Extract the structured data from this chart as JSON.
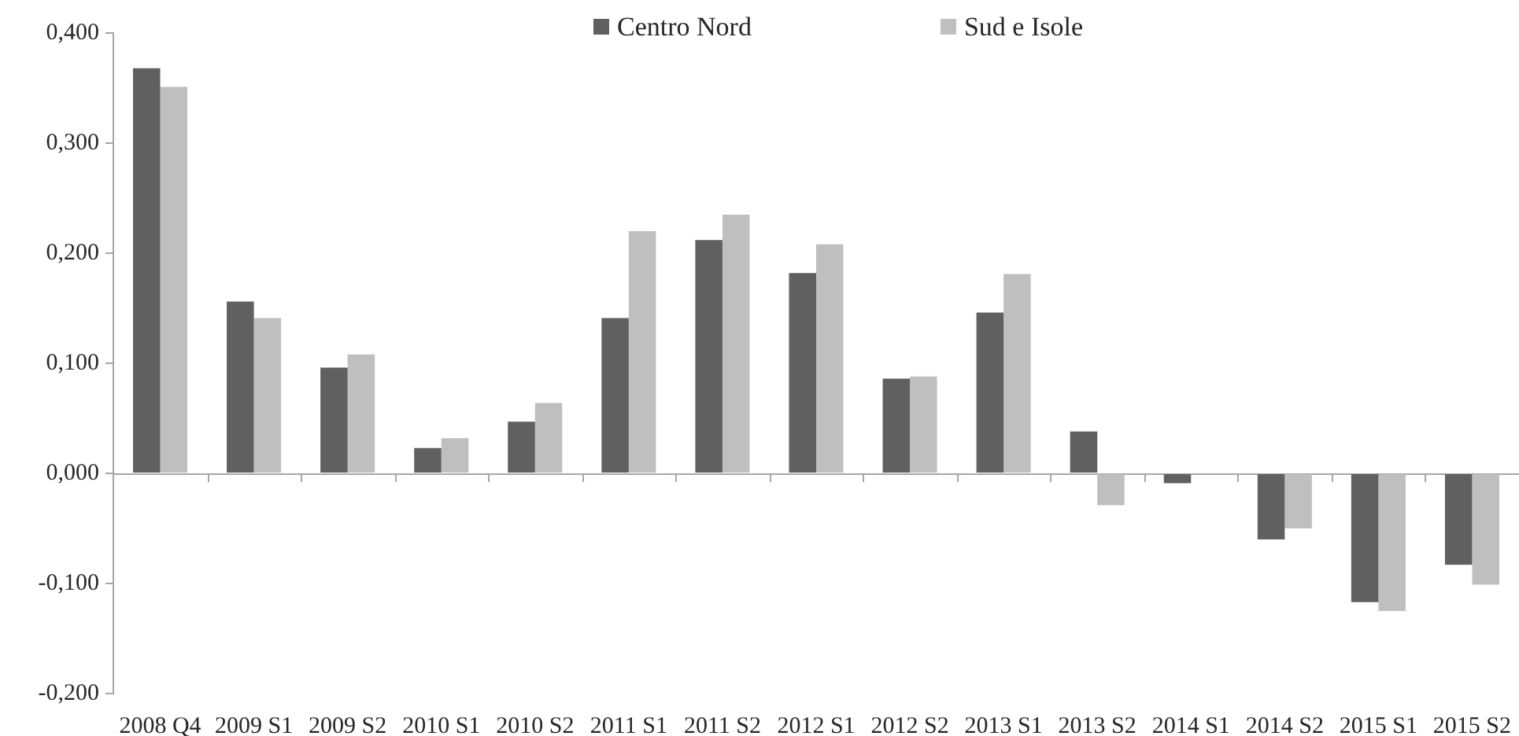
{
  "chart_data": {
    "type": "bar",
    "categories": [
      "2008 Q4",
      "2009 S1",
      "2009 S2",
      "2010 S1",
      "2010 S2",
      "2011 S1",
      "2011 S2",
      "2012 S1",
      "2012 S2",
      "2013 S1",
      "2013 S2",
      "2014 S1",
      "2014 S2",
      "2015 S1",
      "2015 S2"
    ],
    "series": [
      {
        "name": "Centro Nord",
        "color": "#606060",
        "values": [
          0.368,
          0.156,
          0.096,
          0.023,
          0.047,
          0.141,
          0.212,
          0.182,
          0.086,
          0.146,
          0.038,
          -0.009,
          -0.06,
          -0.117,
          -0.083
        ]
      },
      {
        "name": "Sud e Isole",
        "color": "#bfbfbf",
        "values": [
          0.351,
          0.141,
          0.108,
          0.032,
          0.064,
          0.22,
          0.235,
          0.208,
          0.088,
          0.181,
          -0.029,
          0.0,
          -0.05,
          -0.125,
          -0.101
        ]
      }
    ],
    "ylim": [
      -0.2,
      0.4
    ],
    "yticks": [
      {
        "value": -0.2,
        "label": "-0,200"
      },
      {
        "value": -0.1,
        "label": "-0,100"
      },
      {
        "value": 0,
        "label": "0,000"
      },
      {
        "value": 0.1,
        "label": "0,100"
      },
      {
        "value": 0.2,
        "label": "0,200"
      },
      {
        "value": 0.3,
        "label": "0,300"
      },
      {
        "value": 0.4,
        "label": "0,400"
      }
    ],
    "legend": "top"
  }
}
